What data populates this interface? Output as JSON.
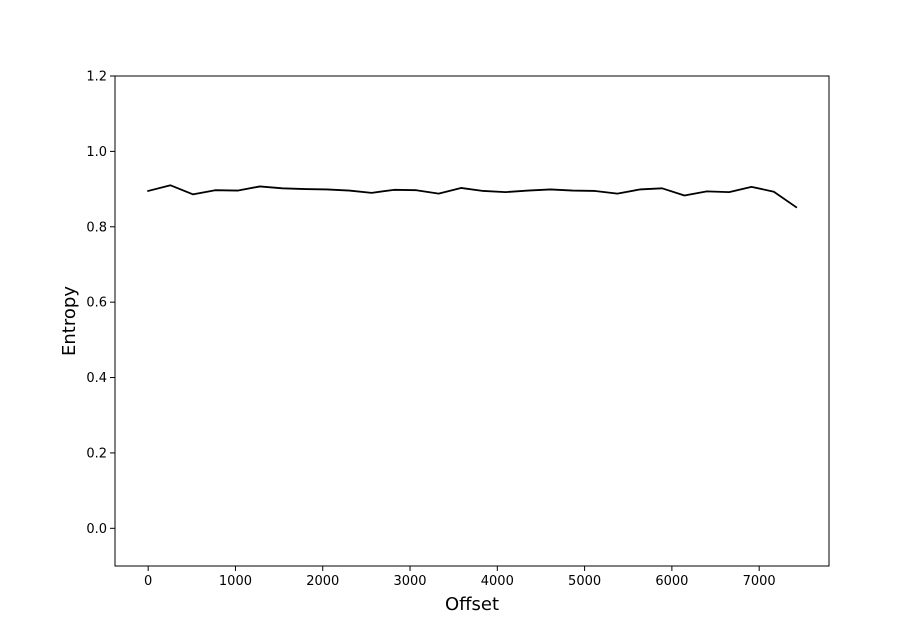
{
  "chart_data": {
    "type": "line",
    "title": "",
    "xlabel": "Offset",
    "ylabel": "Entropy",
    "xlim": [
      -380,
      7800
    ],
    "ylim": [
      -0.1,
      1.2
    ],
    "xticks": [
      0,
      1000,
      2000,
      3000,
      4000,
      5000,
      6000,
      7000
    ],
    "yticks": [
      0.0,
      0.2,
      0.4,
      0.6,
      0.8,
      1.0,
      1.2
    ],
    "xtick_labels": [
      "0",
      "1000",
      "2000",
      "3000",
      "4000",
      "5000",
      "6000",
      "7000"
    ],
    "ytick_labels": [
      "0.0",
      "0.2",
      "0.4",
      "0.6",
      "0.8",
      "1.0",
      "1.2"
    ],
    "grid": false,
    "line_color": "#000000",
    "series": [
      {
        "x": [
          0,
          256,
          512,
          768,
          1024,
          1280,
          1536,
          1792,
          2048,
          2304,
          2560,
          2816,
          3072,
          3328,
          3584,
          3840,
          4096,
          4352,
          4608,
          4864,
          5120,
          5376,
          5632,
          5888,
          6144,
          6400,
          6656,
          6912,
          7168,
          7424
        ],
        "y": [
          0.895,
          0.91,
          0.886,
          0.897,
          0.896,
          0.907,
          0.902,
          0.9,
          0.899,
          0.896,
          0.89,
          0.898,
          0.897,
          0.888,
          0.903,
          0.895,
          0.892,
          0.896,
          0.899,
          0.896,
          0.895,
          0.888,
          0.899,
          0.902,
          0.883,
          0.894,
          0.892,
          0.906,
          0.893,
          0.852
        ]
      }
    ]
  }
}
